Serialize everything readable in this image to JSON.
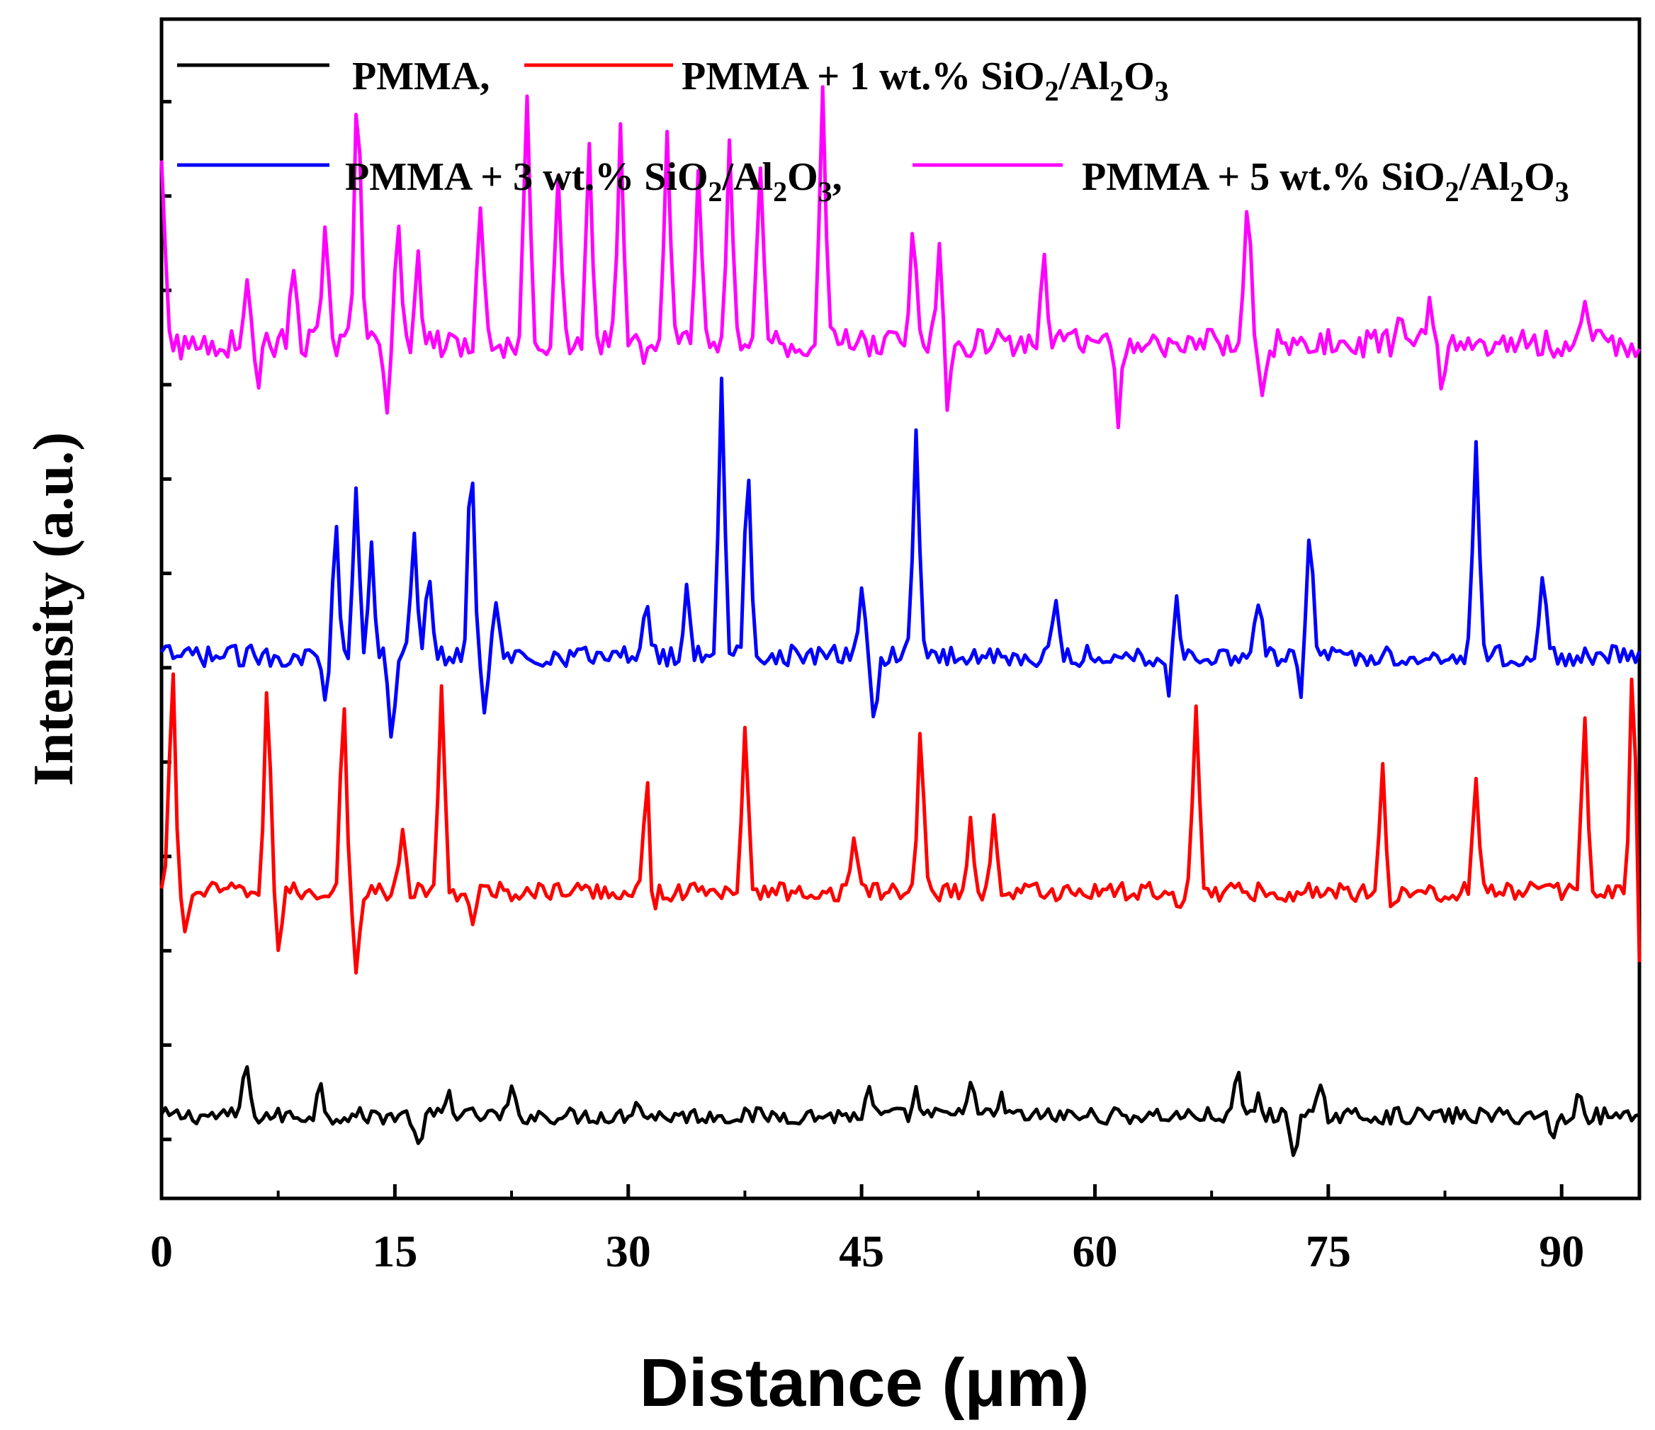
{
  "chart_data": {
    "type": "line",
    "title": "",
    "xlabel": "Distance (μm)",
    "ylabel": "Intensity (a.u.)",
    "xlim": [
      0,
      95
    ],
    "ylim": [
      0,
      10
    ],
    "xticks": [
      "0",
      "15",
      "30",
      "45",
      "60",
      "75",
      "90"
    ],
    "y_tick_labels": "none",
    "grid": false,
    "legend_position": "top",
    "series": [
      {
        "name": "PMMA",
        "legend_label": "PMMA,",
        "color": "#000000",
        "baseline": 0.7,
        "peaks": [
          [
            5.4,
            0.45
          ],
          [
            10.2,
            0.25
          ],
          [
            18.5,
            0.2
          ],
          [
            22.5,
            0.2
          ],
          [
            30.5,
            0.15
          ],
          [
            45.5,
            0.2
          ],
          [
            48.5,
            0.2
          ],
          [
            52,
            0.35
          ],
          [
            54,
            0.15
          ],
          [
            69.2,
            0.35
          ],
          [
            70.5,
            0.15
          ],
          [
            74.5,
            0.2
          ],
          [
            91.2,
            0.2
          ]
        ],
        "dips": [
          [
            16.5,
            0.3
          ],
          [
            72.8,
            0.3
          ],
          [
            89.5,
            0.2
          ]
        ],
        "noise": 0.07
      },
      {
        "name": "PMMA + 1 wt.% SiO2/Al2O3",
        "legend_label": "PMMA + 1 wt.% SiO",
        "color": "#ff0000",
        "baseline": 2.6,
        "peaks": [
          [
            0.7,
            1.9
          ],
          [
            6.8,
            1.7
          ],
          [
            11.7,
            1.6
          ],
          [
            15.5,
            0.5
          ],
          [
            18.0,
            1.7
          ],
          [
            31.2,
            1.1
          ],
          [
            37.5,
            1.4
          ],
          [
            44.5,
            0.5
          ],
          [
            48.8,
            2.0
          ],
          [
            52.0,
            0.6
          ],
          [
            53.5,
            0.6
          ],
          [
            66.5,
            1.6
          ],
          [
            78.5,
            1.2
          ],
          [
            84.5,
            1.4
          ],
          [
            91.5,
            1.6
          ],
          [
            94.6,
            2.0
          ]
        ],
        "dips": [
          [
            1.5,
            0.35
          ],
          [
            7.5,
            0.45
          ],
          [
            12.5,
            0.65
          ],
          [
            20,
            0.3
          ],
          [
            31.5,
            0.4
          ],
          [
            48.8,
            0.6
          ],
          [
            65.5,
            0.1
          ],
          [
            78.8,
            0.25
          ],
          [
            84.5,
            0.45
          ],
          [
            91.8,
            0.15
          ],
          [
            95,
            0.8
          ]
        ],
        "noise": 0.08
      },
      {
        "name": "PMMA + 3 wt.% SiO2/Al2O3",
        "legend_label": "PMMA + 3 wt.% SiO",
        "color": "#0000ff",
        "baseline": 4.6,
        "peaks": [
          [
            11.2,
            1.2
          ],
          [
            12.5,
            1.5
          ],
          [
            13.5,
            0.9
          ],
          [
            16.2,
            1.0
          ],
          [
            17.2,
            0.7
          ],
          [
            19.9,
            1.7
          ],
          [
            21.5,
            0.4
          ],
          [
            31.2,
            0.5
          ],
          [
            33.8,
            0.6
          ],
          [
            36.0,
            2.3
          ],
          [
            37.7,
            1.6
          ],
          [
            45.0,
            0.6
          ],
          [
            48.5,
            2.0
          ],
          [
            57.5,
            0.4
          ],
          [
            65.2,
            0.6
          ],
          [
            70.5,
            0.5
          ],
          [
            73.8,
            1.1
          ],
          [
            84.5,
            1.9
          ],
          [
            88.8,
            0.6
          ]
        ],
        "dips": [
          [
            10.5,
            0.35
          ],
          [
            14.8,
            0.8
          ],
          [
            20.8,
            0.45
          ],
          [
            45.8,
            0.5
          ],
          [
            64.8,
            0.4
          ],
          [
            73.2,
            0.3
          ]
        ],
        "noise": 0.09
      },
      {
        "name": "PMMA + 5 wt.% SiO2/Al2O3",
        "legend_label": "PMMA + 5 wt.% SiO",
        "color": "#ff00ff",
        "baseline": 7.25,
        "peaks": [
          [
            0,
            1.5
          ],
          [
            5.5,
            0.55
          ],
          [
            8.5,
            0.7
          ],
          [
            10.5,
            1.0
          ],
          [
            12.6,
            2.1
          ],
          [
            15.2,
            1.0
          ],
          [
            16.5,
            0.7
          ],
          [
            20.5,
            1.2
          ],
          [
            23.5,
            2.2
          ],
          [
            25.5,
            1.5
          ],
          [
            27.5,
            1.6
          ],
          [
            29.5,
            1.8
          ],
          [
            32.5,
            1.7
          ],
          [
            34.5,
            1.5
          ],
          [
            36.5,
            1.7
          ],
          [
            38.5,
            1.5
          ],
          [
            42.5,
            2.1
          ],
          [
            48.3,
            1.0
          ],
          [
            50,
            0.9
          ],
          [
            56.7,
            0.8
          ],
          [
            69.8,
            1.2
          ],
          [
            79.5,
            0.3
          ],
          [
            81.5,
            0.3
          ],
          [
            91.5,
            0.3
          ]
        ],
        "dips": [
          [
            1.5,
            0.05
          ],
          [
            6.2,
            0.3
          ],
          [
            14.5,
            0.5
          ],
          [
            31,
            0.1
          ],
          [
            50.5,
            0.55
          ],
          [
            61.5,
            0.65
          ],
          [
            70.8,
            0.4
          ],
          [
            82.3,
            0.35
          ]
        ],
        "noise": 0.12
      }
    ]
  }
}
